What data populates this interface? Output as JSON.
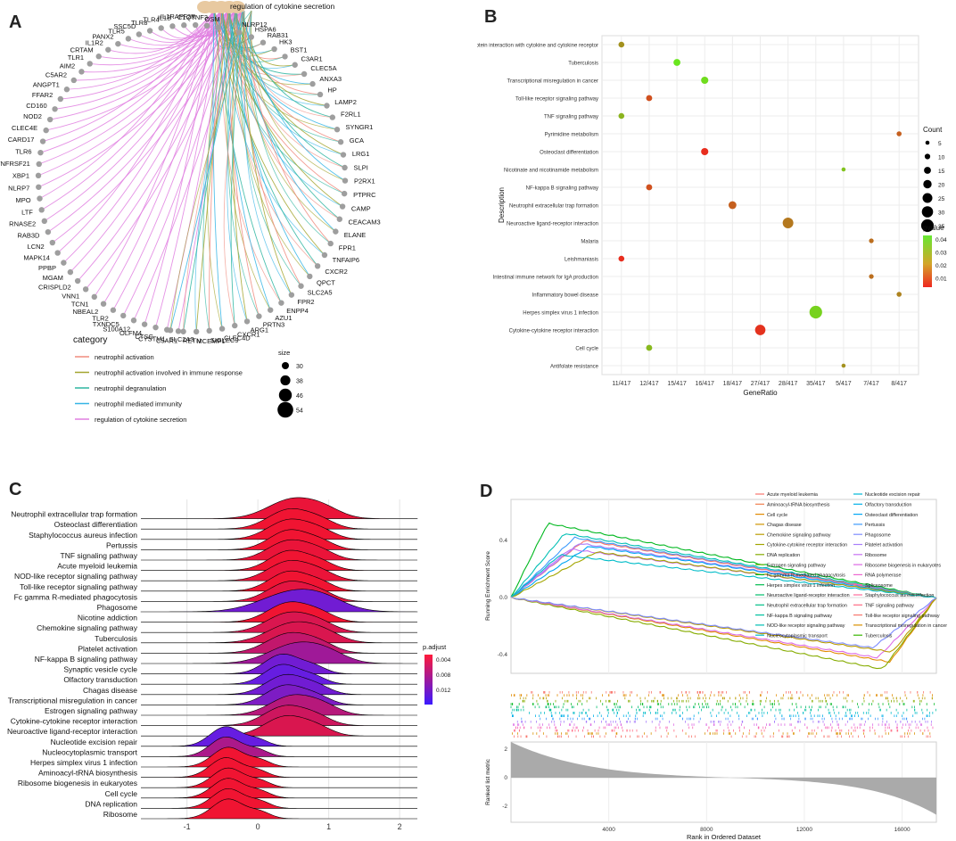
{
  "panels": {
    "a": {
      "letter": "A"
    },
    "b": {
      "letter": "B"
    },
    "c": {
      "letter": "C"
    },
    "d": {
      "letter": "D"
    }
  },
  "colors": {
    "neutrophil_activation": "#f08a7e",
    "neutrophil_activation_immune": "#a3a52e",
    "neutrophil_degranulation": "#2db5a0",
    "neutrophil_mediated_immunity": "#35b5e5",
    "regulation_cytokine": "#e07fe0",
    "hub": "#e8c9a0",
    "gene_node": "#9e9e9e"
  },
  "chart_data": [
    {
      "id": "A",
      "type": "network",
      "center_label": "regulation of cytokine secretion",
      "other_hubs": [
        "neutrophil activation",
        "neutrophil activation involved in immune response",
        "neutrophil degranulation",
        "neutrophil mediated immunity"
      ],
      "genes_left": [
        "OSM",
        "C1QTNF3",
        "F2R",
        "IL1RAP",
        "IL1B",
        "TLR4",
        "TLR8",
        "SSC5D",
        "TLR5",
        "PANX2",
        "IL1R2",
        "CRTAM",
        "TLR1",
        "AIM2",
        "C5AR2",
        "ANGPT1",
        "FFAR2",
        "CD160",
        "NOD2",
        "CLEC4E",
        "CARD17",
        "TLR6",
        "TNFRSF21",
        "XBP1",
        "NLRP7",
        "MPO",
        "LTF",
        "RNASE2",
        "RAB3D",
        "LCN2",
        "MAPK14",
        "PPBP",
        "MGAM",
        "CRISPLD2",
        "VNN1",
        "TCN1",
        "NBEAL2",
        "TLR2",
        "TXNDC5",
        "S100A12",
        "OLFM4",
        "CTSG",
        "CYSTM1",
        "C5AR1"
      ],
      "genes_right": [
        "NLRP12",
        "HSPA6",
        "RAB31",
        "HK3",
        "BST1",
        "C3AR1",
        "CLEC5A",
        "ANXA3",
        "HP",
        "LAMP2",
        "F2RL1",
        "SYNGR1",
        "GCA",
        "LRG1",
        "SLPI",
        "P2RX1",
        "PTPRC",
        "CAMP",
        "CEACAM3",
        "ELANE",
        "FPR1",
        "TNFAIP6",
        "CXCR2",
        "QPCT",
        "SLC2A5",
        "FPR2",
        "ENPP4",
        "AZU1",
        "PRTN3",
        "ARG1",
        "CXCR1",
        "CLEC4D",
        "SIGLEC9",
        "MCEMP1",
        "RETN",
        "SLC2A3"
      ],
      "legend_title": "category",
      "legend": [
        "neutrophil activation",
        "neutrophil activation involved in immune response",
        "neutrophil degranulation",
        "neutrophil mediated immunity",
        "regulation of cytokine secretion"
      ],
      "size_title": "size",
      "sizes": [
        30,
        38,
        46,
        54
      ]
    },
    {
      "id": "B",
      "type": "scatter",
      "xlabel": "GeneRatio",
      "ylabel": "Description",
      "x_categories": [
        "11/417",
        "12/417",
        "15/417",
        "16/417",
        "18/417",
        "27/417",
        "28/417",
        "35/417",
        "5/417",
        "7/417",
        "8/417"
      ],
      "points": [
        {
          "label": "Viral protein interaction with cytokine and cytokine receptor",
          "x": "11/417",
          "count": 11,
          "pvalue": 0.025
        },
        {
          "label": "Tuberculosis",
          "x": "15/417",
          "count": 15,
          "pvalue": 0.042
        },
        {
          "label": "Transcriptional misregulation in cancer",
          "x": "16/417",
          "count": 16,
          "pvalue": 0.04
        },
        {
          "label": "Toll-like receptor signaling pathway",
          "x": "12/417",
          "count": 12,
          "pvalue": 0.012
        },
        {
          "label": "TNF signaling pathway",
          "x": "11/417",
          "count": 11,
          "pvalue": 0.032
        },
        {
          "label": "Pyrimidine metabolism",
          "x": "8/417",
          "count": 8,
          "pvalue": 0.015
        },
        {
          "label": "Osteoclast differentiation",
          "x": "16/417",
          "count": 16,
          "pvalue": 0.005
        },
        {
          "label": "Nicotinate and nicotinamide metabolism",
          "x": "5/417",
          "count": 5,
          "pvalue": 0.035
        },
        {
          "label": "NF-kappa B signaling pathway",
          "x": "12/417",
          "count": 12,
          "pvalue": 0.012
        },
        {
          "label": "Neutrophil extracellular trap formation",
          "x": "18/417",
          "count": 18,
          "pvalue": 0.015
        },
        {
          "label": "Neuroactive ligand-receptor interaction",
          "x": "28/417",
          "count": 28,
          "pvalue": 0.02
        },
        {
          "label": "Malaria",
          "x": "7/417",
          "count": 7,
          "pvalue": 0.018
        },
        {
          "label": "Leishmaniasis",
          "x": "11/417",
          "count": 11,
          "pvalue": 0.005
        },
        {
          "label": "Intestinal immune network for IgA production",
          "x": "7/417",
          "count": 7,
          "pvalue": 0.018
        },
        {
          "label": "Inflammatory bowel disease",
          "x": "8/417",
          "count": 8,
          "pvalue": 0.022
        },
        {
          "label": "Herpes simplex virus 1 infection",
          "x": "35/417",
          "count": 35,
          "pvalue": 0.038
        },
        {
          "label": "Cytokine-cytokine receptor interaction",
          "x": "27/417",
          "count": 27,
          "pvalue": 0.006
        },
        {
          "label": "Cell cycle",
          "x": "12/417",
          "count": 12,
          "pvalue": 0.033
        },
        {
          "label": "Antifolate resistance",
          "x": "5/417",
          "count": 5,
          "pvalue": 0.025
        }
      ],
      "count_legend_title": "Count",
      "count_legend": [
        5,
        10,
        15,
        20,
        25,
        30,
        35
      ],
      "pvalue_legend_title": "pvalue",
      "pvalue_ticks": [
        "0.04",
        "0.03",
        "0.02",
        "0.01"
      ]
    },
    {
      "id": "C",
      "type": "ridgeline",
      "xlabel": "",
      "x_ticks": [
        "-1",
        "0",
        "1",
        "2"
      ],
      "x_range": [
        -1.65,
        2.25
      ],
      "rows": [
        {
          "label": "Neutrophil extracellular trap formation",
          "center": 0.5,
          "width": 0.35,
          "p": 0.0015
        },
        {
          "label": "Osteoclast differentiation",
          "center": 0.45,
          "width": 0.3,
          "p": 0.001
        },
        {
          "label": "Staphylococcus aureus infection",
          "center": 0.45,
          "width": 0.3,
          "p": 0.001
        },
        {
          "label": "Pertussis",
          "center": 0.45,
          "width": 0.28,
          "p": 0.001
        },
        {
          "label": "TNF signaling pathway",
          "center": 0.45,
          "width": 0.3,
          "p": 0.0015
        },
        {
          "label": "Acute myeloid leukemia",
          "center": 0.45,
          "width": 0.28,
          "p": 0.001
        },
        {
          "label": "NOD-like receptor signaling pathway",
          "center": 0.45,
          "width": 0.3,
          "p": 0.0015
        },
        {
          "label": "Toll-like receptor signaling pathway",
          "center": 0.45,
          "width": 0.28,
          "p": 0.001
        },
        {
          "label": "Fc gamma R-mediated phagocytosis",
          "center": 0.45,
          "width": 0.3,
          "p": 0.002
        },
        {
          "label": "Phagosome",
          "center": 0.5,
          "width": 0.45,
          "p": 0.012
        },
        {
          "label": "Nicotine addiction",
          "center": 0.45,
          "width": 0.3,
          "p": 0.001
        },
        {
          "label": "Chemokine signaling pathway",
          "center": 0.45,
          "width": 0.32,
          "p": 0.003
        },
        {
          "label": "Tuberculosis",
          "center": 0.5,
          "width": 0.35,
          "p": 0.003
        },
        {
          "label": "Platelet activation",
          "center": 0.45,
          "width": 0.32,
          "p": 0.005
        },
        {
          "label": "NF-kappa B signaling pathway",
          "center": 0.55,
          "width": 0.38,
          "p": 0.008
        },
        {
          "label": "Synaptic vesicle cycle",
          "center": 0.35,
          "width": 0.25,
          "p": 0.012
        },
        {
          "label": "Olfactory transduction",
          "center": 0.35,
          "width": 0.25,
          "p": 0.013
        },
        {
          "label": "Chagas disease",
          "center": 0.4,
          "width": 0.28,
          "p": 0.012
        },
        {
          "label": "Transcriptional misregulation in cancer",
          "center": 0.4,
          "width": 0.28,
          "p": 0.011
        },
        {
          "label": "Estrogen signaling pathway",
          "center": 0.5,
          "width": 0.32,
          "p": 0.006
        },
        {
          "label": "Cytokine-cytokine receptor interaction",
          "center": 0.4,
          "width": 0.3,
          "p": 0.004
        },
        {
          "label": "Neuroactive ligand-receptor interaction",
          "center": 0.4,
          "width": 0.3,
          "p": 0.003
        },
        {
          "label": "Nucleotide excision repair",
          "center": -0.45,
          "width": 0.22,
          "p": 0.013
        },
        {
          "label": "Nucleocytoplasmic transport",
          "center": -0.45,
          "width": 0.22,
          "p": 0.007
        },
        {
          "label": "Herpes simplex virus 1 infection",
          "center": -0.42,
          "width": 0.22,
          "p": 0.001
        },
        {
          "label": "Aminoacyl-tRNA biosynthesis",
          "center": -0.45,
          "width": 0.22,
          "p": 0.001
        },
        {
          "label": "Ribosome biogenesis in eukaryotes",
          "center": -0.42,
          "width": 0.22,
          "p": 0.001
        },
        {
          "label": "Cell cycle",
          "center": -0.42,
          "width": 0.22,
          "p": 0.001
        },
        {
          "label": "DNA replication",
          "center": -0.42,
          "width": 0.22,
          "p": 0.001
        },
        {
          "label": "Ribosome",
          "center": -0.42,
          "width": 0.22,
          "p": 0.001
        }
      ],
      "legend_title": "p.adjust",
      "legend_ticks": [
        "0.004",
        "0.008",
        "0.012"
      ]
    },
    {
      "id": "D",
      "type": "line",
      "xlabel": "Rank in Ordered Dataset",
      "ylabel_top": "Running Enrichment Score",
      "ylabel_bottom": "Ranked list metric",
      "x_ticks": [
        "4000",
        "8000",
        "12000",
        "16000"
      ],
      "x_range": [
        0,
        17400
      ],
      "top_y_ticks": [
        "0.4",
        "0.0",
        "-0.4"
      ],
      "bottom_y_ticks": [
        "2",
        "0",
        "-2"
      ],
      "legend": [
        {
          "name": "Acute myeloid leukemia",
          "color": "#f8766d"
        },
        {
          "name": "Aminoacyl-tRNA biosynthesis",
          "color": "#f07f4f"
        },
        {
          "name": "Cell cycle",
          "color": "#e18a00"
        },
        {
          "name": "Chagas disease",
          "color": "#cf9400"
        },
        {
          "name": "Chemokine signaling pathway",
          "color": "#bb9d00"
        },
        {
          "name": "Cytokine-cytokine receptor interaction",
          "color": "#a3a500"
        },
        {
          "name": "DNA replication",
          "color": "#86ac00"
        },
        {
          "name": "Estrogen signaling pathway",
          "color": "#60b200"
        },
        {
          "name": "Fc gamma R-mediated phagocytosis",
          "color": "#00b81f"
        },
        {
          "name": "Herpes simplex virus 1 infection",
          "color": "#00bb4e"
        },
        {
          "name": "Neuroactive ligand-receptor interaction",
          "color": "#00be6c"
        },
        {
          "name": "Neutrophil extracellular trap formation",
          "color": "#00c087"
        },
        {
          "name": "NF-kappa B signaling pathway",
          "color": "#00c19f"
        },
        {
          "name": "NOD-like receptor signaling pathway",
          "color": "#00bfb4"
        },
        {
          "name": "Nucleocytoplasmic transport",
          "color": "#00bcc8"
        },
        {
          "name": "Nucleotide excision repair",
          "color": "#00b8d8"
        },
        {
          "name": "Olfactory transduction",
          "color": "#00b0e8"
        },
        {
          "name": "Osteoclast differentiation",
          "color": "#00a6f4"
        },
        {
          "name": "Pertussis",
          "color": "#3e9bfc"
        },
        {
          "name": "Phagosome",
          "color": "#7f8dff"
        },
        {
          "name": "Platelet activation",
          "color": "#a87efb"
        },
        {
          "name": "Ribosome",
          "color": "#c771f3"
        },
        {
          "name": "Ribosome biogenesis in eukaryotes",
          "color": "#dc69e4"
        },
        {
          "name": "RNA polymerase",
          "color": "#ec66d0"
        },
        {
          "name": "Spliceosome",
          "color": "#f766b7"
        },
        {
          "name": "Staphylococcus aureus infection",
          "color": "#fd6b9b"
        },
        {
          "name": "TNF signaling pathway",
          "color": "#ff6c83"
        },
        {
          "name": "Toll-like receptor signaling pathway",
          "color": "#f8766d"
        },
        {
          "name": "Transcriptional misregulation in cancer",
          "color": "#d89000"
        },
        {
          "name": "Tuberculosis",
          "color": "#39b600"
        }
      ],
      "curves": [
        {
          "peak": 0.52,
          "peak_x": 1500,
          "end": 0.0,
          "color": "#00b81f"
        },
        {
          "peak": 0.45,
          "peak_x": 2200,
          "end": 0.0,
          "color": "#00bfb4"
        },
        {
          "peak": 0.42,
          "peak_x": 2600,
          "end": 0.0,
          "color": "#3e9bfc"
        },
        {
          "peak": 0.4,
          "peak_x": 3000,
          "end": 0.0,
          "color": "#f8766d"
        },
        {
          "peak": 0.38,
          "peak_x": 2800,
          "end": 0.0,
          "color": "#a87efb"
        },
        {
          "peak": 0.36,
          "peak_x": 3200,
          "end": 0.0,
          "color": "#00a6f4"
        },
        {
          "peak": 0.34,
          "peak_x": 2400,
          "end": 0.0,
          "color": "#c771f3"
        },
        {
          "peak": 0.32,
          "peak_x": 3500,
          "end": 0.0,
          "color": "#a3a500"
        },
        {
          "peak": 0.3,
          "peak_x": 2000,
          "end": 0.0,
          "color": "#00bcc8"
        },
        {
          "peak": -0.45,
          "peak_x": 15500,
          "end": 0.0,
          "color": "#e18a00"
        },
        {
          "peak": -0.5,
          "peak_x": 15200,
          "end": 0.0,
          "color": "#86ac00"
        },
        {
          "peak": -0.42,
          "peak_x": 15000,
          "end": 0.0,
          "color": "#dc69e4"
        },
        {
          "peak": -0.38,
          "peak_x": 15600,
          "end": 0.0,
          "color": "#bb9d00"
        },
        {
          "peak": -0.35,
          "peak_x": 14800,
          "end": 0.0,
          "color": "#7f8dff"
        }
      ]
    }
  ]
}
